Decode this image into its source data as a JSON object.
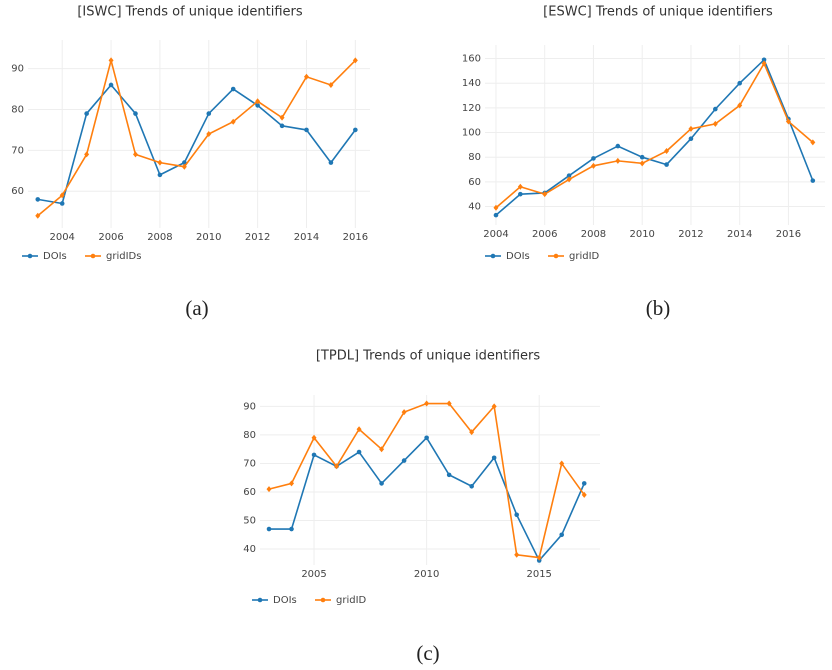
{
  "chart_data": [
    {
      "type": "line",
      "title": "[ISWC] Trends of unique identifiers",
      "caption": "(a)",
      "x": [
        2003,
        2004,
        2005,
        2006,
        2007,
        2008,
        2009,
        2010,
        2011,
        2012,
        2013,
        2014,
        2015,
        2016
      ],
      "series": [
        {
          "name": "DOIs",
          "color": "#1f77b4",
          "values": [
            58,
            57,
            79,
            86,
            79,
            64,
            67,
            79,
            85,
            81,
            76,
            75,
            67,
            75
          ]
        },
        {
          "name": "gridIDs",
          "color": "#ff7f0e",
          "values": [
            54,
            59,
            69,
            92,
            69,
            67,
            66,
            74,
            77,
            82,
            78,
            88,
            86,
            92
          ]
        }
      ],
      "xlim": [
        2002.6,
        2016.6
      ],
      "ylim": [
        51,
        97
      ],
      "xticks": [
        2004,
        2006,
        2008,
        2010,
        2012,
        2014,
        2016
      ],
      "yticks": [
        60,
        70,
        80,
        90
      ],
      "grid": true
    },
    {
      "type": "line",
      "title": "[ESWC] Trends of unique identifiers",
      "caption": "(b)",
      "x": [
        2004,
        2005,
        2006,
        2007,
        2008,
        2009,
        2010,
        2011,
        2012,
        2013,
        2014,
        2015,
        2016,
        2017
      ],
      "series": [
        {
          "name": "DOIs",
          "color": "#1f77b4",
          "values": [
            33,
            50,
            51,
            65,
            79,
            89,
            80,
            74,
            95,
            119,
            140,
            159,
            111,
            61
          ]
        },
        {
          "name": "gridID",
          "color": "#ff7f0e",
          "values": [
            39,
            56,
            50,
            62,
            73,
            77,
            75,
            85,
            103,
            107,
            122,
            156,
            109,
            92
          ]
        }
      ],
      "xlim": [
        2003.55,
        2017.5
      ],
      "ylim": [
        25,
        171
      ],
      "xticks": [
        2004,
        2006,
        2008,
        2010,
        2012,
        2014,
        2016
      ],
      "yticks": [
        40,
        60,
        80,
        100,
        120,
        140,
        160
      ],
      "grid": true
    },
    {
      "type": "line",
      "title": "[TPDL] Trends of unique identifiers",
      "caption": "(c)",
      "x": [
        2003,
        2004,
        2005,
        2006,
        2007,
        2008,
        2009,
        2010,
        2011,
        2012,
        2013,
        2014,
        2015,
        2016,
        2017
      ],
      "series": [
        {
          "name": "DOIs",
          "color": "#1f77b4",
          "values": [
            47,
            47,
            73,
            69,
            74,
            63,
            71,
            79,
            66,
            62,
            72,
            52,
            36,
            45,
            63
          ]
        },
        {
          "name": "gridID",
          "color": "#ff7f0e",
          "values": [
            61,
            63,
            79,
            69,
            82,
            75,
            88,
            91,
            91,
            81,
            90,
            38,
            37,
            70,
            59
          ]
        }
      ],
      "xlim": [
        2002.6,
        2017.7
      ],
      "ylim": [
        34.4,
        94
      ],
      "xticks": [
        2005,
        2010,
        2015
      ],
      "yticks": [
        40,
        50,
        60,
        70,
        80,
        90
      ],
      "grid": true
    }
  ]
}
